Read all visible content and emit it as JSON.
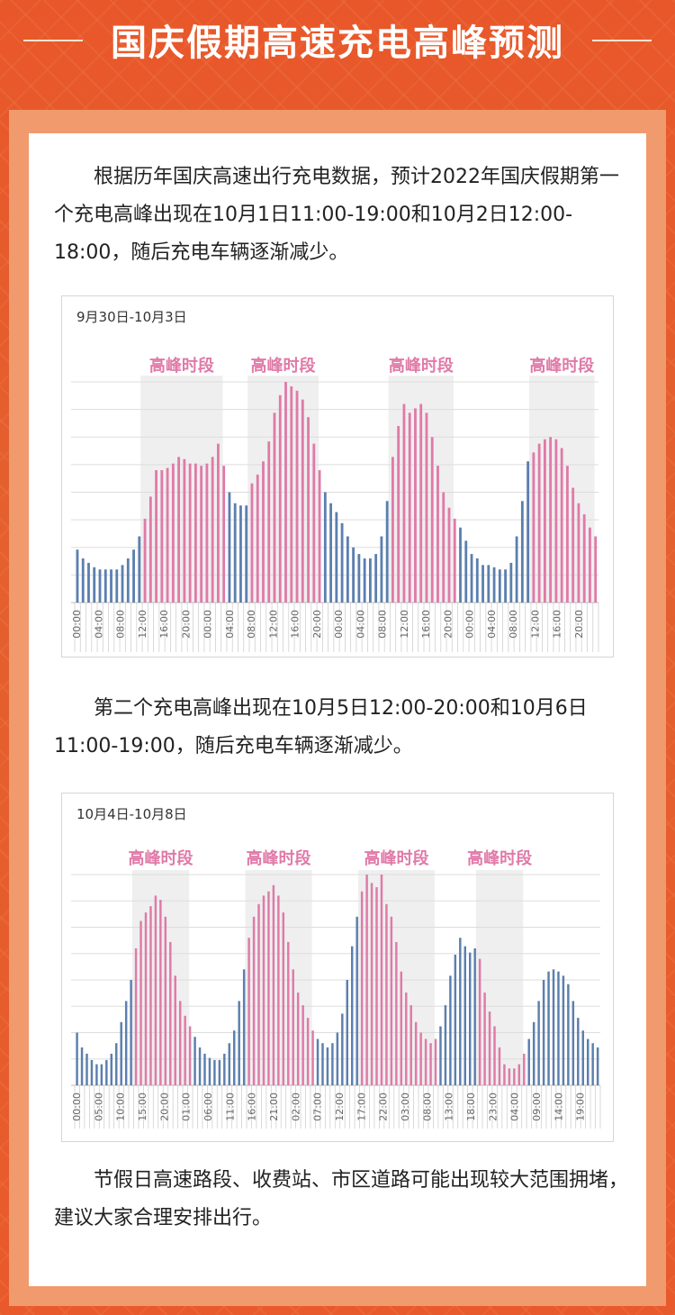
{
  "header": {
    "title": "国庆假期高速充电高峰预测"
  },
  "paragraphs": {
    "p1": "　　根据历年国庆高速出行充电数据，预计2022年国庆假期第一个充电高峰出现在10月1日11:00-19:00和10月2日12:00-18:00，随后充电车辆逐渐减少。",
    "p2": "　　第二个充电高峰出现在10月5日12:00-20:00和10月6日11:00-19:00，随后充电车辆逐渐减少。",
    "p3": "　　节假日高速路段、收费站、市区道路可能出现较大范围拥堵，建议大家合理安排出行。"
  },
  "colors": {
    "peak": "#e07aa8",
    "normal": "#5b7fae",
    "peak_band": "#efefef",
    "peak_label": "#e07aa8",
    "grid": "#dddddd"
  },
  "chart_data": [
    {
      "type": "bar",
      "title": "9月30日-10月3日",
      "peak_label": "高峰时段",
      "tick_labels": [
        "00:00",
        "04:00",
        "08:00",
        "12:00",
        "16:00",
        "20:00",
        "00:00",
        "04:00",
        "08:00",
        "12:00",
        "16:00",
        "20:00",
        "00:00",
        "04:00",
        "08:00",
        "12:00",
        "16:00",
        "20:00",
        "00:00",
        "04:00",
        "08:00",
        "12:00",
        "16:00",
        "20:00"
      ],
      "peak_ranges": [
        [
          12,
          26
        ],
        [
          31,
          43
        ],
        [
          56,
          67
        ],
        [
          81,
          92
        ]
      ],
      "values": [
        24,
        20,
        18,
        16,
        15,
        15,
        15,
        15,
        17,
        20,
        24,
        30,
        38,
        48,
        60,
        60,
        61,
        63,
        66,
        65,
        63,
        63,
        62,
        63,
        66,
        72,
        62,
        50,
        45,
        44,
        44,
        54,
        58,
        64,
        73,
        86,
        94,
        100,
        98,
        96,
        92,
        84,
        72,
        60,
        50,
        45,
        41,
        36,
        30,
        25,
        22,
        20,
        20,
        22,
        30,
        46,
        66,
        80,
        90,
        86,
        88,
        90,
        86,
        75,
        62,
        50,
        43,
        38,
        34,
        28,
        22,
        20,
        17,
        17,
        16,
        15,
        15,
        18,
        30,
        46,
        64,
        68,
        72,
        74,
        75,
        74,
        70,
        62,
        52,
        45,
        40,
        34,
        30
      ],
      "ylim": [
        0,
        100
      ]
    },
    {
      "type": "bar",
      "title": "10月4日-10月8日",
      "peak_label": "高峰时段",
      "tick_labels": [
        "00:00",
        "05:00",
        "10:00",
        "15:00",
        "20:00",
        "01:00",
        "06:00",
        "11:00",
        "16:00",
        "21:00",
        "02:00",
        "07:00",
        "12:00",
        "17:00",
        "22:00",
        "03:00",
        "08:00",
        "13:00",
        "18:00",
        "23:00",
        "04:00",
        "09:00",
        "14:00",
        "19:00"
      ],
      "peak_ranges": [
        [
          12,
          23
        ],
        [
          35,
          48
        ],
        [
          58,
          73
        ],
        [
          82,
          91
        ]
      ],
      "values": [
        25,
        18,
        15,
        12,
        10,
        10,
        12,
        15,
        20,
        30,
        40,
        50,
        65,
        78,
        82,
        85,
        90,
        88,
        80,
        68,
        52,
        40,
        33,
        28,
        23,
        18,
        15,
        13,
        12,
        12,
        15,
        20,
        26,
        40,
        55,
        70,
        80,
        86,
        90,
        92,
        95,
        90,
        82,
        68,
        55,
        44,
        38,
        32,
        26,
        22,
        20,
        18,
        20,
        25,
        34,
        50,
        66,
        80,
        92,
        100,
        96,
        94,
        100,
        86,
        80,
        68,
        54,
        44,
        38,
        30,
        25,
        22,
        20,
        22,
        28,
        38,
        52,
        62,
        70,
        66,
        63,
        65,
        60,
        44,
        35,
        28,
        18,
        10,
        8,
        8,
        10,
        15,
        22,
        30,
        40,
        50,
        54,
        55,
        54,
        52,
        48,
        40,
        32,
        26,
        22,
        20,
        18
      ]
    }
  ]
}
